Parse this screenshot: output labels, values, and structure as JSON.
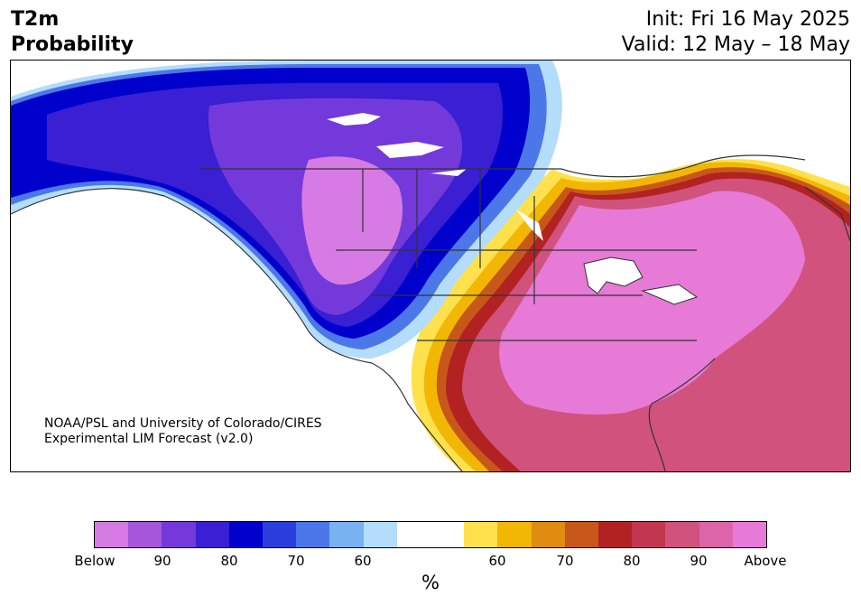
{
  "header": {
    "variable": "T2m",
    "product": "Probability",
    "init": "Init: Fri 16 May 2025",
    "valid": "Valid: 12 May – 18 May"
  },
  "credit": {
    "line1": "NOAA/PSL and University of Colorado/CIRES",
    "line2": "Experimental LIM Forecast (v2.0)"
  },
  "colorbar": {
    "unit": "%",
    "colors": [
      "#d67be3",
      "#a457d9",
      "#7339db",
      "#3a1fd3",
      "#0000cc",
      "#2a3fdc",
      "#4c77e8",
      "#78b2f0",
      "#b3ddfa",
      "#ffffff",
      "#ffffff",
      "#ffe14d",
      "#f2b705",
      "#e08c10",
      "#c8581a",
      "#b32222",
      "#c23650",
      "#d0527d",
      "#dc64a8",
      "#e67ad6"
    ],
    "labels": [
      "Below",
      "90",
      "80",
      "70",
      "60",
      "60",
      "70",
      "80",
      "90",
      "Above"
    ]
  },
  "map_colors": {
    "below_extreme": "#d67be3",
    "below_95": "#a457d9",
    "below_90": "#7339db",
    "below_85": "#3a1fd3",
    "below_80": "#0000cc",
    "below_75": "#2a3fdc",
    "below_70": "#4c77e8",
    "below_65": "#78b2f0",
    "below_60": "#b3ddfa",
    "above_60": "#ffe14d",
    "above_65": "#f2b705",
    "above_70": "#e08c10",
    "above_75": "#c8581a",
    "above_80": "#b32222",
    "above_85": "#c23650",
    "above_90": "#d0527d",
    "above_95": "#dc64a8",
    "above_extreme": "#e67ad6"
  }
}
